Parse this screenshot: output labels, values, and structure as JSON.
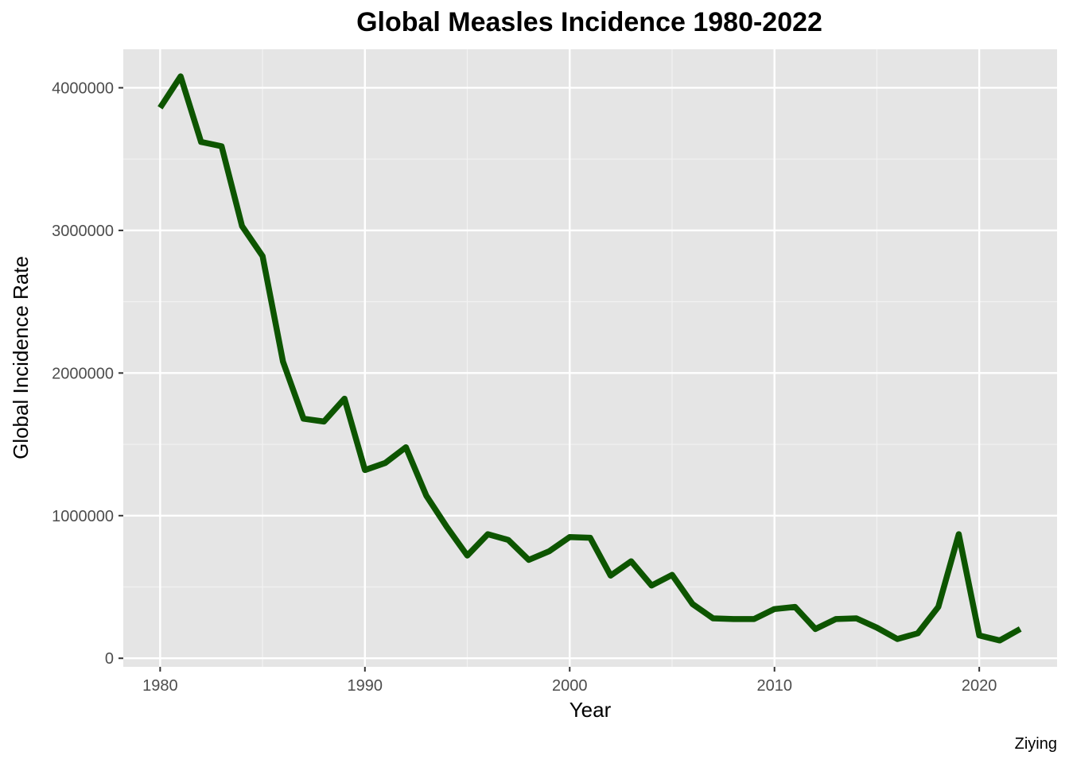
{
  "chart_data": {
    "type": "line",
    "title": "Global Measles Incidence 1980-2022",
    "xlabel": "Year",
    "ylabel": "Global Incidence Rate",
    "caption": "Ziying",
    "xlim": [
      1978.2,
      2023.8
    ],
    "ylim": [
      -60000,
      4270000
    ],
    "x_ticks": [
      1980,
      1990,
      2000,
      2010,
      2020
    ],
    "x_tick_labels": [
      "1980",
      "1990",
      "2000",
      "2010",
      "2020"
    ],
    "y_ticks": [
      0,
      1000000,
      2000000,
      3000000,
      4000000
    ],
    "y_tick_labels": [
      "0",
      "1000000",
      "2000000",
      "3000000",
      "4000000"
    ],
    "grid": true,
    "legend": "none",
    "colors": {
      "panel_background": "#e5e5e5",
      "grid_major": "#ffffff",
      "grid_minor": "#f2f2f2",
      "line": "#0d5500",
      "tick_mark": "#333333"
    },
    "series": [
      {
        "x": [
          1980,
          1981,
          1982,
          1983,
          1984,
          1985,
          1986,
          1987,
          1988,
          1989,
          1990,
          1991,
          1992,
          1993,
          1994,
          1995,
          1996,
          1997,
          1998,
          1999,
          2000,
          2001,
          2002,
          2003,
          2004,
          2005,
          2006,
          2007,
          2008,
          2009,
          2010,
          2011,
          2012,
          2013,
          2014,
          2015,
          2016,
          2017,
          2018,
          2019,
          2020,
          2021,
          2022
        ],
        "values": [
          3860000,
          4080000,
          3620000,
          3590000,
          3030000,
          2820000,
          2080000,
          1680000,
          1660000,
          1820000,
          1320000,
          1370000,
          1480000,
          1140000,
          920000,
          720000,
          870000,
          830000,
          690000,
          750000,
          850000,
          845000,
          580000,
          680000,
          510000,
          585000,
          380000,
          280000,
          275000,
          275000,
          345000,
          360000,
          205000,
          275000,
          280000,
          215000,
          135000,
          175000,
          360000,
          870000,
          160000,
          125000,
          205000
        ]
      }
    ]
  }
}
